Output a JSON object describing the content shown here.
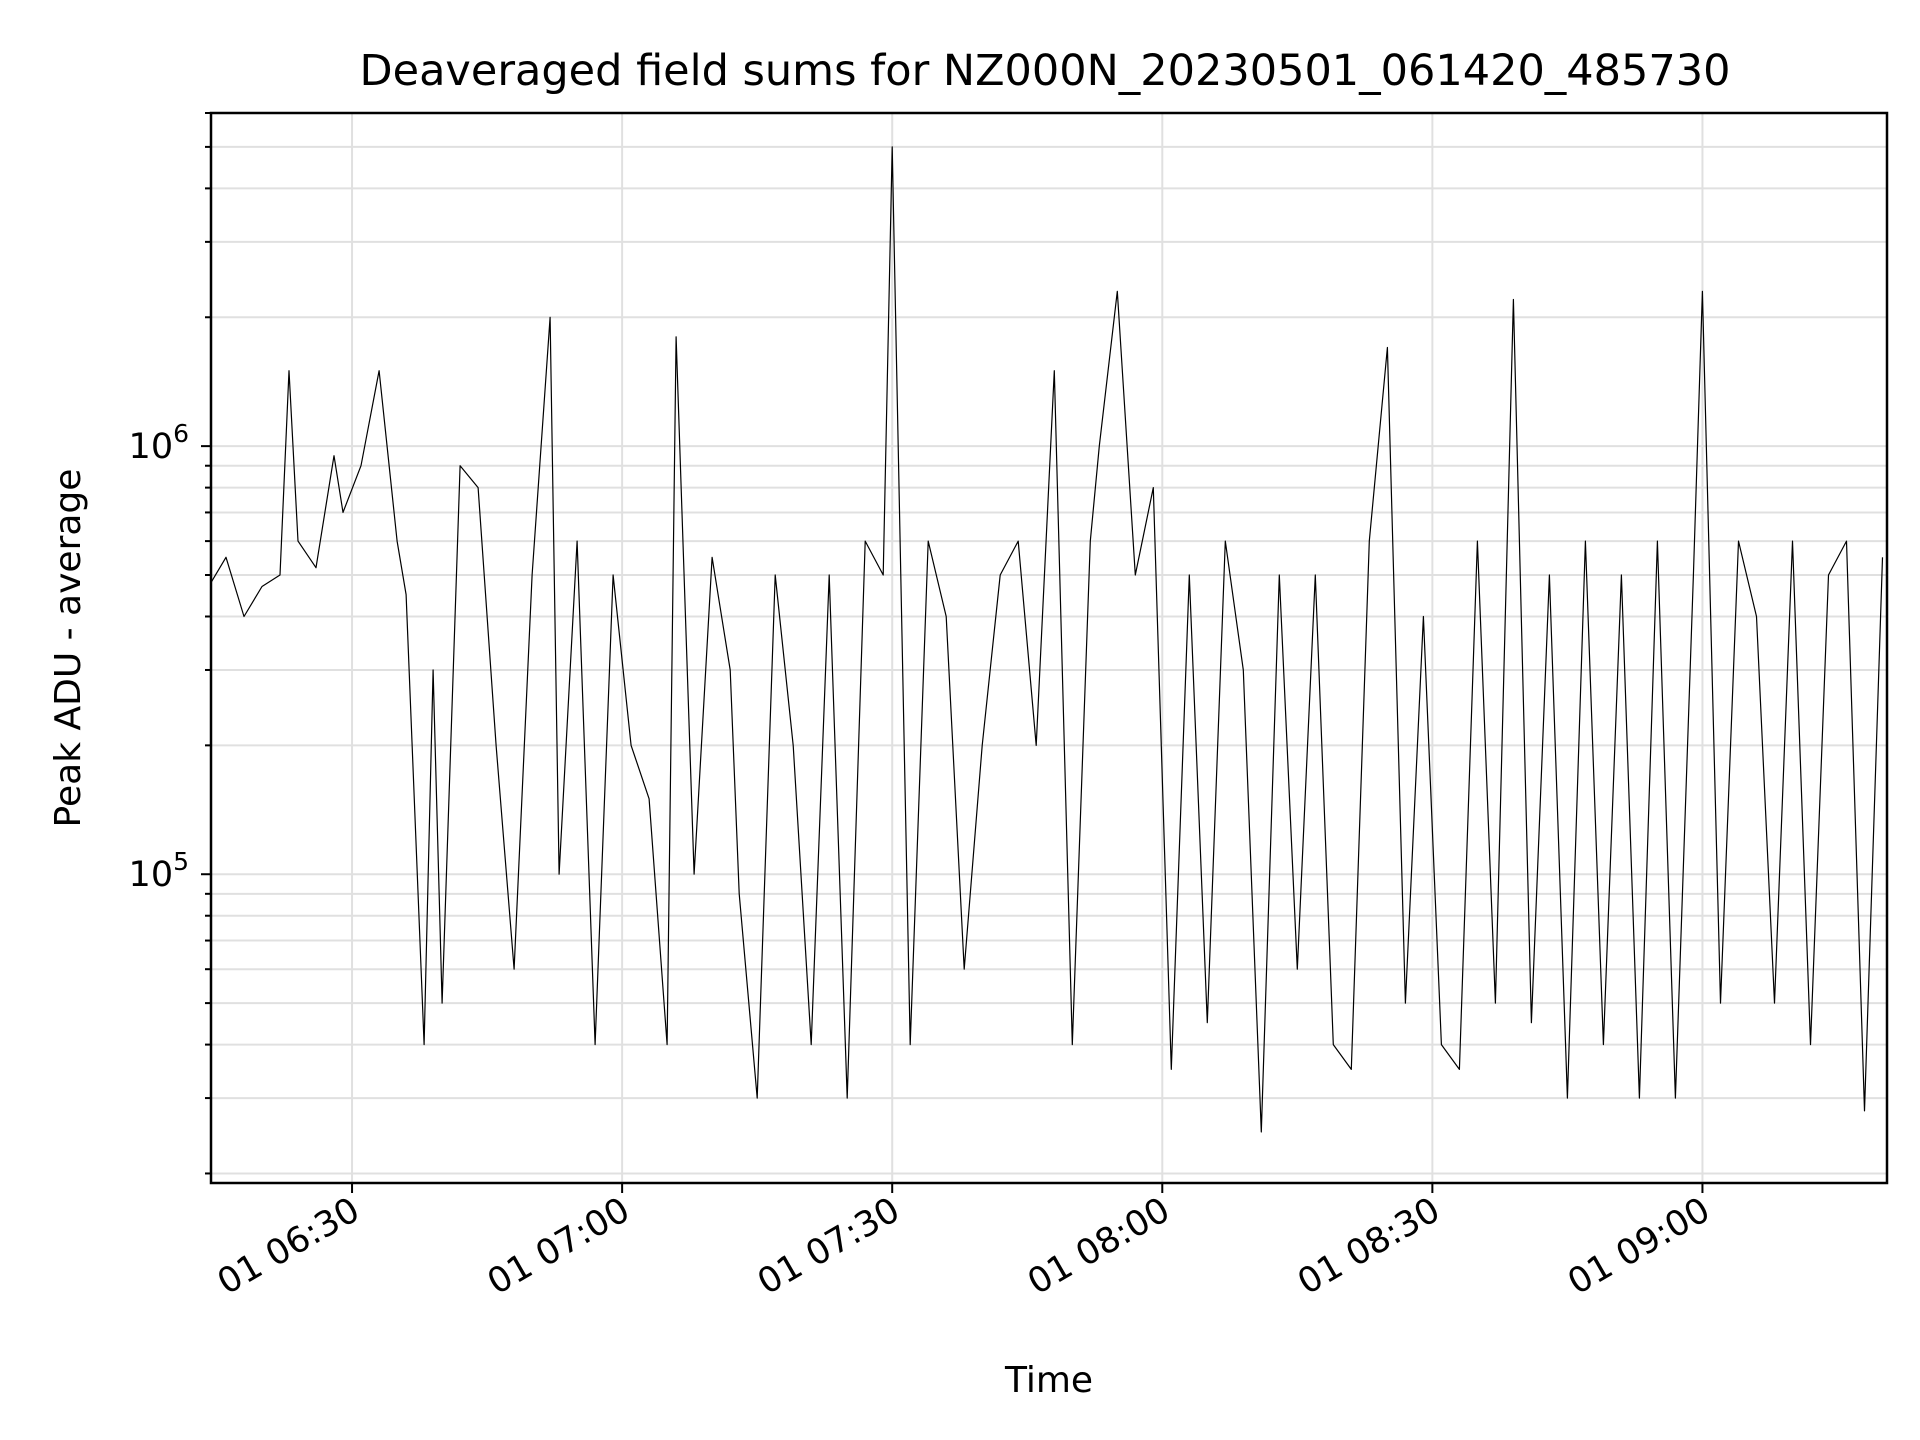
{
  "chart_data": {
    "type": "line",
    "title": "Deaveraged field sums for NZ000N_20230501_061420_485730",
    "xlabel": "Time",
    "ylabel": "Peak ADU - average",
    "x_scale": "time",
    "y_scale": "log",
    "xlim": [
      "2023-05-01 06:14:20",
      "2023-05-01 09:20:30"
    ],
    "ylim": [
      19000,
      6000000
    ],
    "x_ticks": [
      {
        "time": "2023-05-01 06:30",
        "label": "01 06:30"
      },
      {
        "time": "2023-05-01 07:00",
        "label": "01 07:00"
      },
      {
        "time": "2023-05-01 07:30",
        "label": "01 07:30"
      },
      {
        "time": "2023-05-01 08:00",
        "label": "01 08:00"
      },
      {
        "time": "2023-05-01 08:30",
        "label": "01 08:30"
      },
      {
        "time": "2023-05-01 09:00",
        "label": "01 09:00"
      }
    ],
    "y_ticks": [
      {
        "value": 100000,
        "base": "10",
        "exp": "5"
      },
      {
        "value": 1000000,
        "base": "10",
        "exp": "6"
      }
    ],
    "grid": true,
    "line_color": "#000000",
    "series": [
      {
        "x": [
          "2023-05-01 06:14:20",
          "2023-05-01 06:16:00",
          "2023-05-01 06:18:00",
          "2023-05-01 06:20:00",
          "2023-05-01 06:22:00",
          "2023-05-01 06:23:00",
          "2023-05-01 06:24:00",
          "2023-05-01 06:26:00",
          "2023-05-01 06:28:00",
          "2023-05-01 06:29:00",
          "2023-05-01 06:31:00",
          "2023-05-01 06:33:00",
          "2023-05-01 06:35:00",
          "2023-05-01 06:36:00",
          "2023-05-01 06:38:00",
          "2023-05-01 06:39:00",
          "2023-05-01 06:40:00",
          "2023-05-01 06:42:00",
          "2023-05-01 06:44:00",
          "2023-05-01 06:46:00",
          "2023-05-01 06:48:00",
          "2023-05-01 06:50:00",
          "2023-05-01 06:52:00",
          "2023-05-01 06:53:00",
          "2023-05-01 06:55:00",
          "2023-05-01 06:57:00",
          "2023-05-01 06:59:00",
          "2023-05-01 07:01:00",
          "2023-05-01 07:03:00",
          "2023-05-01 07:05:00",
          "2023-05-01 07:06:00",
          "2023-05-01 07:08:00",
          "2023-05-01 07:10:00",
          "2023-05-01 07:12:00",
          "2023-05-01 07:13:00",
          "2023-05-01 07:15:00",
          "2023-05-01 07:17:00",
          "2023-05-01 07:19:00",
          "2023-05-01 07:21:00",
          "2023-05-01 07:23:00",
          "2023-05-01 07:25:00",
          "2023-05-01 07:27:00",
          "2023-05-01 07:29:00",
          "2023-05-01 07:30:00",
          "2023-05-01 07:32:00",
          "2023-05-01 07:34:00",
          "2023-05-01 07:36:00",
          "2023-05-01 07:38:00",
          "2023-05-01 07:40:00",
          "2023-05-01 07:42:00",
          "2023-05-01 07:44:00",
          "2023-05-01 07:46:00",
          "2023-05-01 07:48:00",
          "2023-05-01 07:50:00",
          "2023-05-01 07:52:00",
          "2023-05-01 07:53:00",
          "2023-05-01 07:55:00",
          "2023-05-01 07:57:00",
          "2023-05-01 07:59:00",
          "2023-05-01 08:01:00",
          "2023-05-01 08:03:00",
          "2023-05-01 08:05:00",
          "2023-05-01 08:07:00",
          "2023-05-01 08:09:00",
          "2023-05-01 08:11:00",
          "2023-05-01 08:13:00",
          "2023-05-01 08:15:00",
          "2023-05-01 08:17:00",
          "2023-05-01 08:19:00",
          "2023-05-01 08:21:00",
          "2023-05-01 08:23:00",
          "2023-05-01 08:25:00",
          "2023-05-01 08:27:00",
          "2023-05-01 08:29:00",
          "2023-05-01 08:31:00",
          "2023-05-01 08:33:00",
          "2023-05-01 08:35:00",
          "2023-05-01 08:37:00",
          "2023-05-01 08:39:00",
          "2023-05-01 08:41:00",
          "2023-05-01 08:43:00",
          "2023-05-01 08:45:00",
          "2023-05-01 08:47:00",
          "2023-05-01 08:49:00",
          "2023-05-01 08:51:00",
          "2023-05-01 08:53:00",
          "2023-05-01 08:55:00",
          "2023-05-01 08:57:00",
          "2023-05-01 08:59:00",
          "2023-05-01 09:00:00",
          "2023-05-01 09:02:00",
          "2023-05-01 09:04:00",
          "2023-05-01 09:06:00",
          "2023-05-01 09:08:00",
          "2023-05-01 09:10:00",
          "2023-05-01 09:12:00",
          "2023-05-01 09:14:00",
          "2023-05-01 09:16:00",
          "2023-05-01 09:18:00",
          "2023-05-01 09:20:00"
        ],
        "y": [
          480000,
          550000,
          400000,
          470000,
          500000,
          1500000,
          600000,
          520000,
          950000,
          700000,
          900000,
          1500000,
          600000,
          450000,
          40000,
          300000,
          50000,
          900000,
          800000,
          200000,
          60000,
          500000,
          2000000,
          100000,
          600000,
          40000,
          500000,
          200000,
          150000,
          40000,
          1800000,
          100000,
          550000,
          300000,
          90000,
          30000,
          500000,
          200000,
          40000,
          500000,
          30000,
          600000,
          500000,
          5000000,
          40000,
          600000,
          400000,
          60000,
          200000,
          500000,
          600000,
          200000,
          1500000,
          40000,
          600000,
          1000000,
          2300000,
          500000,
          800000,
          35000,
          500000,
          45000,
          600000,
          300000,
          25000,
          500000,
          60000,
          500000,
          40000,
          35000,
          600000,
          1700000,
          50000,
          400000,
          40000,
          35000,
          600000,
          50000,
          2200000,
          45000,
          500000,
          30000,
          600000,
          40000,
          500000,
          30000,
          600000,
          30000,
          500000,
          2300000,
          50000,
          600000,
          400000,
          50000,
          600000,
          40000,
          500000,
          600000,
          28000,
          550000
        ]
      }
    ]
  }
}
